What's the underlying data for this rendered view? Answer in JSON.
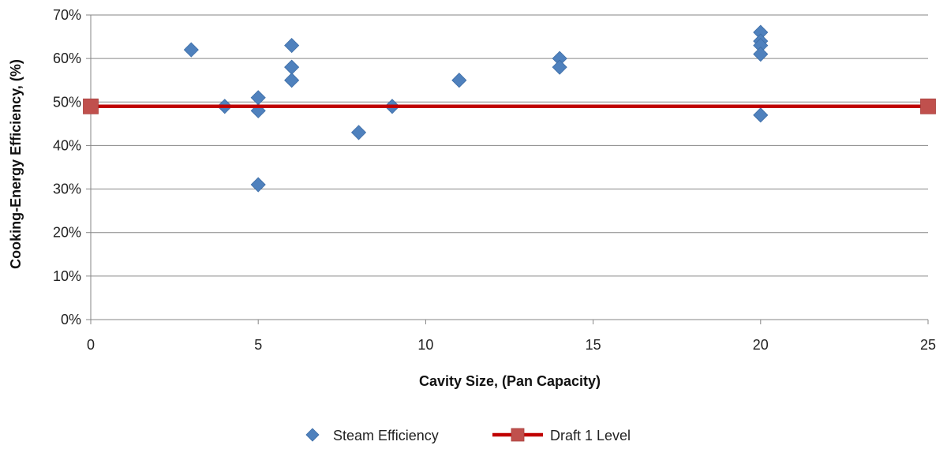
{
  "chart_data": {
    "type": "scatter",
    "title": "",
    "xlabel": "Cavity Size, (Pan Capacity)",
    "ylabel": "Cooking-Energy Efficiency, (%)",
    "xlim": [
      0,
      25
    ],
    "ylim": [
      0,
      70
    ],
    "x_ticks": [
      "0",
      "5",
      "10",
      "15",
      "20",
      "25"
    ],
    "y_ticks": [
      "0%",
      "10%",
      "20%",
      "30%",
      "40%",
      "50%",
      "60%",
      "70%"
    ],
    "grid": "horizontal",
    "legend_position": "bottom",
    "series": [
      {
        "name": "Steam Efficiency",
        "marker": "diamond",
        "color": "#4F81BD",
        "points": [
          {
            "x": 3,
            "y": 62
          },
          {
            "x": 4,
            "y": 49
          },
          {
            "x": 5,
            "y": 51
          },
          {
            "x": 5,
            "y": 48
          },
          {
            "x": 5,
            "y": 31
          },
          {
            "x": 6,
            "y": 63
          },
          {
            "x": 6,
            "y": 58
          },
          {
            "x": 6,
            "y": 55
          },
          {
            "x": 8,
            "y": 43
          },
          {
            "x": 9,
            "y": 49
          },
          {
            "x": 11,
            "y": 55
          },
          {
            "x": 14,
            "y": 60
          },
          {
            "x": 14,
            "y": 58
          },
          {
            "x": 20,
            "y": 66
          },
          {
            "x": 20,
            "y": 64
          },
          {
            "x": 20,
            "y": 63
          },
          {
            "x": 20,
            "y": 61
          },
          {
            "x": 20,
            "y": 47
          }
        ]
      },
      {
        "name": "Draft 1 Level",
        "marker": "square",
        "color": "#C0504D",
        "line_color": "#C00000",
        "points": [
          {
            "x": 0,
            "y": 49
          },
          {
            "x": 25,
            "y": 49
          }
        ]
      }
    ]
  }
}
